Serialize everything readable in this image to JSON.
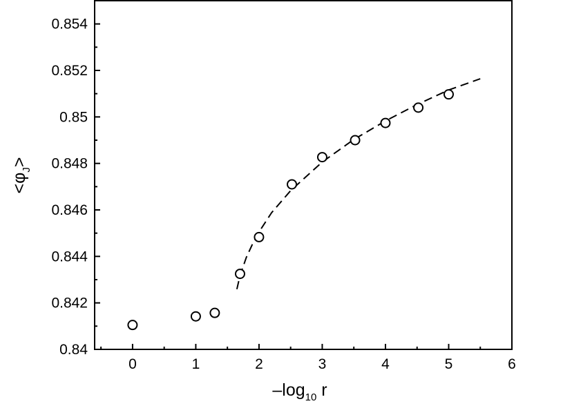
{
  "chart_data": {
    "type": "scatter",
    "xlabel": {
      "prefix": "–log",
      "sub": "10",
      "suffix": " r"
    },
    "ylabel": {
      "open": "<",
      "symbol": "φ",
      "sub": "J",
      "close": ">"
    },
    "xlim": [
      -0.6,
      6
    ],
    "ylim": [
      0.84,
      0.855
    ],
    "x_ticks": [
      0,
      1,
      2,
      3,
      4,
      5,
      6
    ],
    "x_tick_labels": [
      "0",
      "1",
      "2",
      "3",
      "4",
      "5",
      "6"
    ],
    "y_ticks": [
      0.84,
      0.842,
      0.844,
      0.846,
      0.848,
      0.85,
      0.852,
      0.854
    ],
    "y_tick_labels": [
      "0.84",
      "0.842",
      "0.844",
      "0.846",
      "0.848",
      "0.85",
      "0.852",
      "0.854"
    ],
    "grid": false,
    "points": [
      {
        "x": 0.0,
        "y": 0.84105
      },
      {
        "x": 1.0,
        "y": 0.84142
      },
      {
        "x": 1.3,
        "y": 0.84157
      },
      {
        "x": 1.7,
        "y": 0.84325
      },
      {
        "x": 2.0,
        "y": 0.84483
      },
      {
        "x": 2.52,
        "y": 0.8471
      },
      {
        "x": 3.0,
        "y": 0.84827
      },
      {
        "x": 3.52,
        "y": 0.849
      },
      {
        "x": 4.0,
        "y": 0.84974
      },
      {
        "x": 4.52,
        "y": 0.8504
      },
      {
        "x": 5.0,
        "y": 0.85097
      }
    ],
    "fit": {
      "style": "dashed",
      "x": [
        1.65,
        1.7,
        1.8,
        1.9,
        2.0,
        2.2,
        2.5,
        3.0,
        3.5,
        4.0,
        4.5,
        5.0,
        5.5
      ],
      "y": [
        0.84259,
        0.84318,
        0.84396,
        0.84455,
        0.84505,
        0.84588,
        0.84683,
        0.84806,
        0.84903,
        0.84983,
        0.85053,
        0.85116,
        0.85164
      ]
    }
  }
}
